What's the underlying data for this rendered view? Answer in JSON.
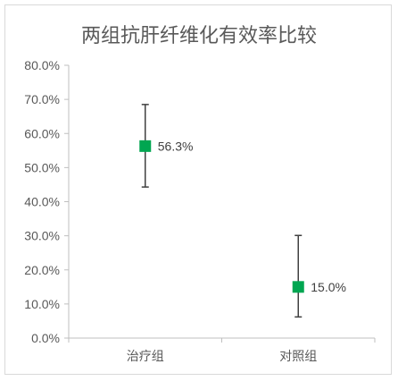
{
  "chart_data": {
    "type": "scatter",
    "title": "两组抗肝纤维化有效率比较",
    "categories": [
      "治疗组",
      "对照组"
    ],
    "series": [
      {
        "values": [
          56.3,
          15.0
        ],
        "error_low": [
          44.3,
          6.2
        ],
        "error_high": [
          68.5,
          30.1
        ],
        "data_labels": [
          "56.3%",
          "15.0%"
        ]
      }
    ],
    "ylim": [
      0,
      80
    ],
    "yticks": [
      0,
      10,
      20,
      30,
      40,
      50,
      60,
      70,
      80
    ],
    "ytick_labels": [
      "0.0%",
      "10.0%",
      "20.0%",
      "30.0%",
      "40.0%",
      "50.0%",
      "60.0%",
      "70.0%",
      "80.0%"
    ],
    "grid": false,
    "legend": "none",
    "colors": {
      "marker": "#00a651",
      "error_bar": "#404040",
      "axis": "#bfbfbf",
      "text": "#595959"
    }
  }
}
